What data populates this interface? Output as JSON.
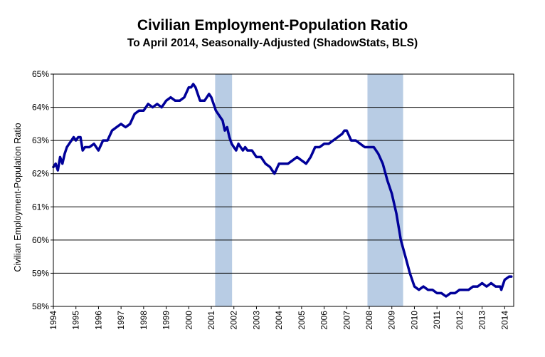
{
  "chart_data": {
    "type": "line",
    "title": "Civilian Employment-Population  Ratio",
    "subtitle": "To April 2014, Seasonally-Adjusted (ShadowStats, BLS)",
    "ylabel": "Civilian Employment-Population  Ratio",
    "xlabel": "",
    "ylim": [
      58,
      65
    ],
    "xlim": [
      1994,
      2014.4
    ],
    "y_ticks": [
      58,
      59,
      60,
      61,
      62,
      63,
      64,
      65
    ],
    "y_tick_labels": [
      "58%",
      "59%",
      "60%",
      "61%",
      "62%",
      "63%",
      "64%",
      "65%"
    ],
    "x_tick_labels": [
      "1994",
      "1995",
      "1996",
      "1997",
      "1998",
      "1999",
      "2000",
      "2001",
      "2002",
      "2003",
      "2004",
      "2005",
      "2006",
      "2007",
      "2008",
      "2009",
      "2010",
      "2011",
      "2012",
      "2013",
      "2014"
    ],
    "grid": true,
    "legend": "none",
    "recessions": [
      [
        2001.17,
        2001.92
      ],
      [
        2007.92,
        2009.5
      ]
    ],
    "colors": {
      "line": "#000099",
      "recession": "#b8cce4",
      "grid": "#000000"
    },
    "series": [
      {
        "x": [
          1994.0,
          1994.1,
          1994.2,
          1994.3,
          1994.4,
          1994.5,
          1994.6,
          1994.7,
          1994.8,
          1994.9,
          1995.0,
          1995.1,
          1995.2,
          1995.3,
          1995.4,
          1995.6,
          1995.8,
          1996.0,
          1996.2,
          1996.4,
          1996.6,
          1996.8,
          1997.0,
          1997.2,
          1997.4,
          1997.6,
          1997.8,
          1998.0,
          1998.2,
          1998.4,
          1998.6,
          1998.8,
          1999.0,
          1999.2,
          1999.4,
          1999.6,
          1999.8,
          2000.0,
          2000.1,
          2000.2,
          2000.3,
          2000.5,
          2000.7,
          2000.9,
          2001.0,
          2001.2,
          2001.4,
          2001.5,
          2001.6,
          2001.7,
          2001.8,
          2001.9,
          2002.0,
          2002.1,
          2002.2,
          2002.3,
          2002.4,
          2002.5,
          2002.6,
          2002.8,
          2003.0,
          2003.2,
          2003.4,
          2003.6,
          2003.7,
          2003.8,
          2004.0,
          2004.2,
          2004.4,
          2004.6,
          2004.8,
          2005.0,
          2005.2,
          2005.4,
          2005.6,
          2005.8,
          2006.0,
          2006.2,
          2006.4,
          2006.6,
          2006.8,
          2006.9,
          2007.0,
          2007.2,
          2007.4,
          2007.6,
          2007.8,
          2008.0,
          2008.2,
          2008.4,
          2008.6,
          2008.8,
          2009.0,
          2009.2,
          2009.4,
          2009.6,
          2009.8,
          2009.9,
          2010.0,
          2010.2,
          2010.4,
          2010.6,
          2010.8,
          2011.0,
          2011.2,
          2011.4,
          2011.6,
          2011.8,
          2012.0,
          2012.2,
          2012.4,
          2012.6,
          2012.8,
          2013.0,
          2013.2,
          2013.4,
          2013.6,
          2013.8,
          2013.85,
          2013.9,
          2014.0,
          2014.2,
          2014.3
        ],
        "y": [
          62.2,
          62.3,
          62.1,
          62.5,
          62.3,
          62.6,
          62.8,
          62.9,
          63.0,
          63.1,
          63.0,
          63.1,
          63.1,
          62.7,
          62.8,
          62.8,
          62.9,
          62.7,
          63.0,
          63.0,
          63.3,
          63.4,
          63.5,
          63.4,
          63.5,
          63.8,
          63.9,
          63.9,
          64.1,
          64.0,
          64.1,
          64.0,
          64.2,
          64.3,
          64.2,
          64.2,
          64.3,
          64.6,
          64.6,
          64.7,
          64.6,
          64.2,
          64.2,
          64.4,
          64.3,
          63.9,
          63.7,
          63.6,
          63.3,
          63.4,
          63.1,
          62.9,
          62.8,
          62.7,
          62.9,
          62.8,
          62.7,
          62.8,
          62.7,
          62.7,
          62.5,
          62.5,
          62.3,
          62.2,
          62.1,
          62.0,
          62.3,
          62.3,
          62.3,
          62.4,
          62.5,
          62.4,
          62.3,
          62.5,
          62.8,
          62.8,
          62.9,
          62.9,
          63.0,
          63.1,
          63.2,
          63.3,
          63.3,
          63.0,
          63.0,
          62.9,
          62.8,
          62.8,
          62.8,
          62.6,
          62.3,
          61.8,
          61.4,
          60.8,
          60.0,
          59.5,
          59.0,
          58.8,
          58.6,
          58.5,
          58.6,
          58.5,
          58.5,
          58.4,
          58.4,
          58.3,
          58.4,
          58.4,
          58.5,
          58.5,
          58.5,
          58.6,
          58.6,
          58.7,
          58.6,
          58.7,
          58.6,
          58.6,
          58.5,
          58.6,
          58.8,
          58.9,
          58.9
        ]
      }
    ]
  }
}
